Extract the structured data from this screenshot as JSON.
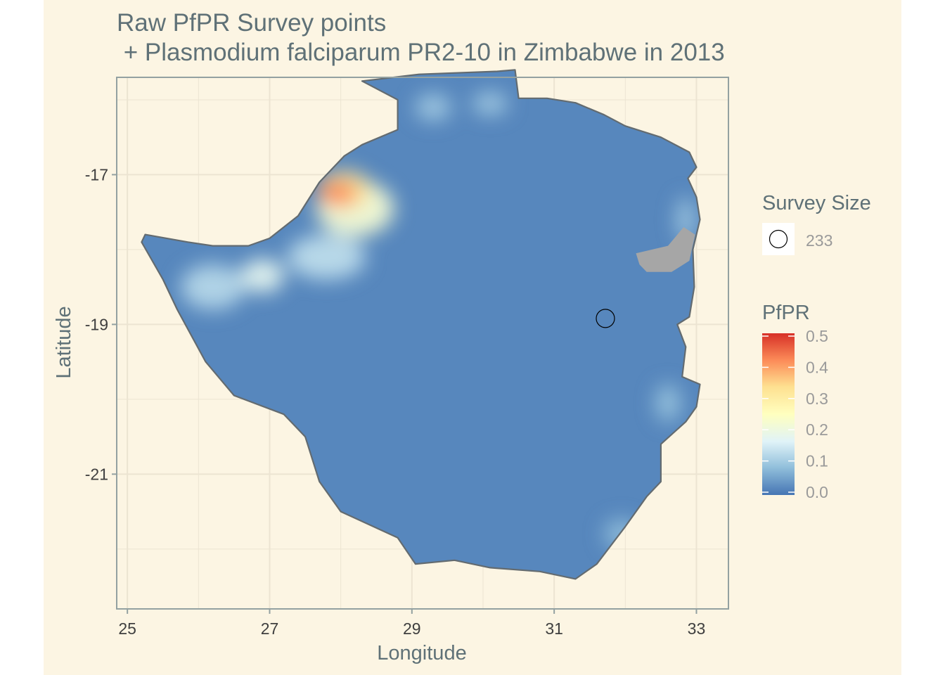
{
  "chart_data": {
    "type": "map",
    "title_line1": "Raw PfPR Survey points",
    "title_line2": " + Plasmodium falciparum PR2-10 in Zimbabwe in 2013",
    "xlabel": "Longitude",
    "ylabel": "Latitude",
    "xlim": [
      24.85,
      33.45
    ],
    "ylim": [
      -22.8,
      -15.7
    ],
    "x_ticks": [
      25,
      27,
      29,
      31,
      33
    ],
    "x_tick_labels": [
      "25",
      "27",
      "29",
      "31",
      "33"
    ],
    "y_ticks": [
      -17,
      -19,
      -21
    ],
    "y_tick_labels": [
      "-17",
      "-19",
      "-21"
    ],
    "grid": true,
    "country_outline": [
      [
        28.3,
        -15.75
      ],
      [
        29.1,
        -15.66
      ],
      [
        30.2,
        -15.62
      ],
      [
        30.45,
        -15.6
      ],
      [
        30.5,
        -15.98
      ],
      [
        30.9,
        -15.98
      ],
      [
        31.3,
        -16.04
      ],
      [
        31.7,
        -16.2
      ],
      [
        32.0,
        -16.35
      ],
      [
        32.5,
        -16.5
      ],
      [
        32.9,
        -16.7
      ],
      [
        33.0,
        -16.9
      ],
      [
        32.88,
        -17.05
      ],
      [
        33.0,
        -17.3
      ],
      [
        33.05,
        -17.6
      ],
      [
        32.95,
        -18.0
      ],
      [
        32.97,
        -18.5
      ],
      [
        32.9,
        -18.9
      ],
      [
        32.73,
        -19.0
      ],
      [
        32.85,
        -19.3
      ],
      [
        32.8,
        -19.7
      ],
      [
        33.05,
        -19.8
      ],
      [
        33.0,
        -20.1
      ],
      [
        32.85,
        -20.3
      ],
      [
        32.5,
        -20.6
      ],
      [
        32.5,
        -21.1
      ],
      [
        32.3,
        -21.3
      ],
      [
        32.0,
        -21.7
      ],
      [
        31.6,
        -22.2
      ],
      [
        31.3,
        -22.4
      ],
      [
        30.8,
        -22.3
      ],
      [
        30.1,
        -22.25
      ],
      [
        29.6,
        -22.15
      ],
      [
        29.05,
        -22.2
      ],
      [
        28.8,
        -21.85
      ],
      [
        28.0,
        -21.5
      ],
      [
        27.7,
        -21.1
      ],
      [
        27.5,
        -20.5
      ],
      [
        27.2,
        -20.2
      ],
      [
        26.5,
        -19.95
      ],
      [
        26.1,
        -19.5
      ],
      [
        25.7,
        -18.8
      ],
      [
        25.5,
        -18.4
      ],
      [
        25.2,
        -17.9
      ],
      [
        25.25,
        -17.8
      ],
      [
        25.85,
        -17.9
      ],
      [
        26.2,
        -17.95
      ],
      [
        26.7,
        -17.95
      ],
      [
        27.0,
        -17.85
      ],
      [
        27.4,
        -17.55
      ],
      [
        27.7,
        -17.1
      ],
      [
        28.05,
        -16.75
      ],
      [
        28.3,
        -16.6
      ],
      [
        28.8,
        -16.4
      ],
      [
        28.8,
        -16.0
      ]
    ],
    "missing_data_region": [
      [
        32.15,
        -18.05
      ],
      [
        32.6,
        -17.95
      ],
      [
        32.82,
        -17.7
      ],
      [
        32.98,
        -17.8
      ],
      [
        32.9,
        -18.15
      ],
      [
        32.65,
        -18.3
      ],
      [
        32.3,
        -18.3
      ],
      [
        32.2,
        -18.2
      ]
    ],
    "raster_hotspots": [
      {
        "lon": 27.95,
        "lat": -17.25,
        "value": 0.42,
        "rx": 0.55,
        "ry": 0.35
      },
      {
        "lon": 28.05,
        "lat": -17.2,
        "value": 0.32,
        "rx": 0.75,
        "ry": 0.5
      },
      {
        "lon": 28.2,
        "lat": -17.45,
        "value": 0.22,
        "rx": 1.1,
        "ry": 0.75
      },
      {
        "lon": 26.9,
        "lat": -18.35,
        "value": 0.18,
        "rx": 0.6,
        "ry": 0.45
      },
      {
        "lon": 26.2,
        "lat": -18.5,
        "value": 0.12,
        "rx": 0.9,
        "ry": 0.6
      },
      {
        "lon": 27.8,
        "lat": -18.1,
        "value": 0.13,
        "rx": 1.1,
        "ry": 0.6
      },
      {
        "lon": 29.3,
        "lat": -16.1,
        "value": 0.1,
        "rx": 0.5,
        "ry": 0.35
      },
      {
        "lon": 30.1,
        "lat": -16.05,
        "value": 0.1,
        "rx": 0.5,
        "ry": 0.3
      },
      {
        "lon": 32.85,
        "lat": -17.6,
        "value": 0.1,
        "rx": 0.25,
        "ry": 0.6
      },
      {
        "lon": 32.6,
        "lat": -20.05,
        "value": 0.09,
        "rx": 0.35,
        "ry": 0.5
      },
      {
        "lon": 31.95,
        "lat": -21.8,
        "value": 0.08,
        "rx": 0.5,
        "ry": 0.4
      }
    ],
    "survey_points": [
      {
        "lon": 31.72,
        "lat": -18.92,
        "size": 233
      }
    ],
    "legend": {
      "size_title": "Survey Size",
      "size_entries": [
        {
          "label": "233",
          "value": 233
        }
      ],
      "color_title": "PfPR",
      "color_ticks": [
        0.5,
        0.4,
        0.3,
        0.2,
        0.1,
        0.0
      ],
      "color_tick_labels": [
        "0.5",
        "0.4",
        "0.3",
        "0.2",
        "0.1",
        "0.0"
      ],
      "color_range": [
        0,
        0.5
      ]
    },
    "colors": {
      "background": "#fcf5e3",
      "grid": "#ece4d2",
      "panel_border": "#93a1a1",
      "country_border": "#636b70",
      "missing": "#a6a6a6",
      "scale": [
        "#4575b4",
        "#91bfdb",
        "#e0f3f8",
        "#ffffbf",
        "#fee090",
        "#fc8d59",
        "#d73027"
      ]
    }
  }
}
